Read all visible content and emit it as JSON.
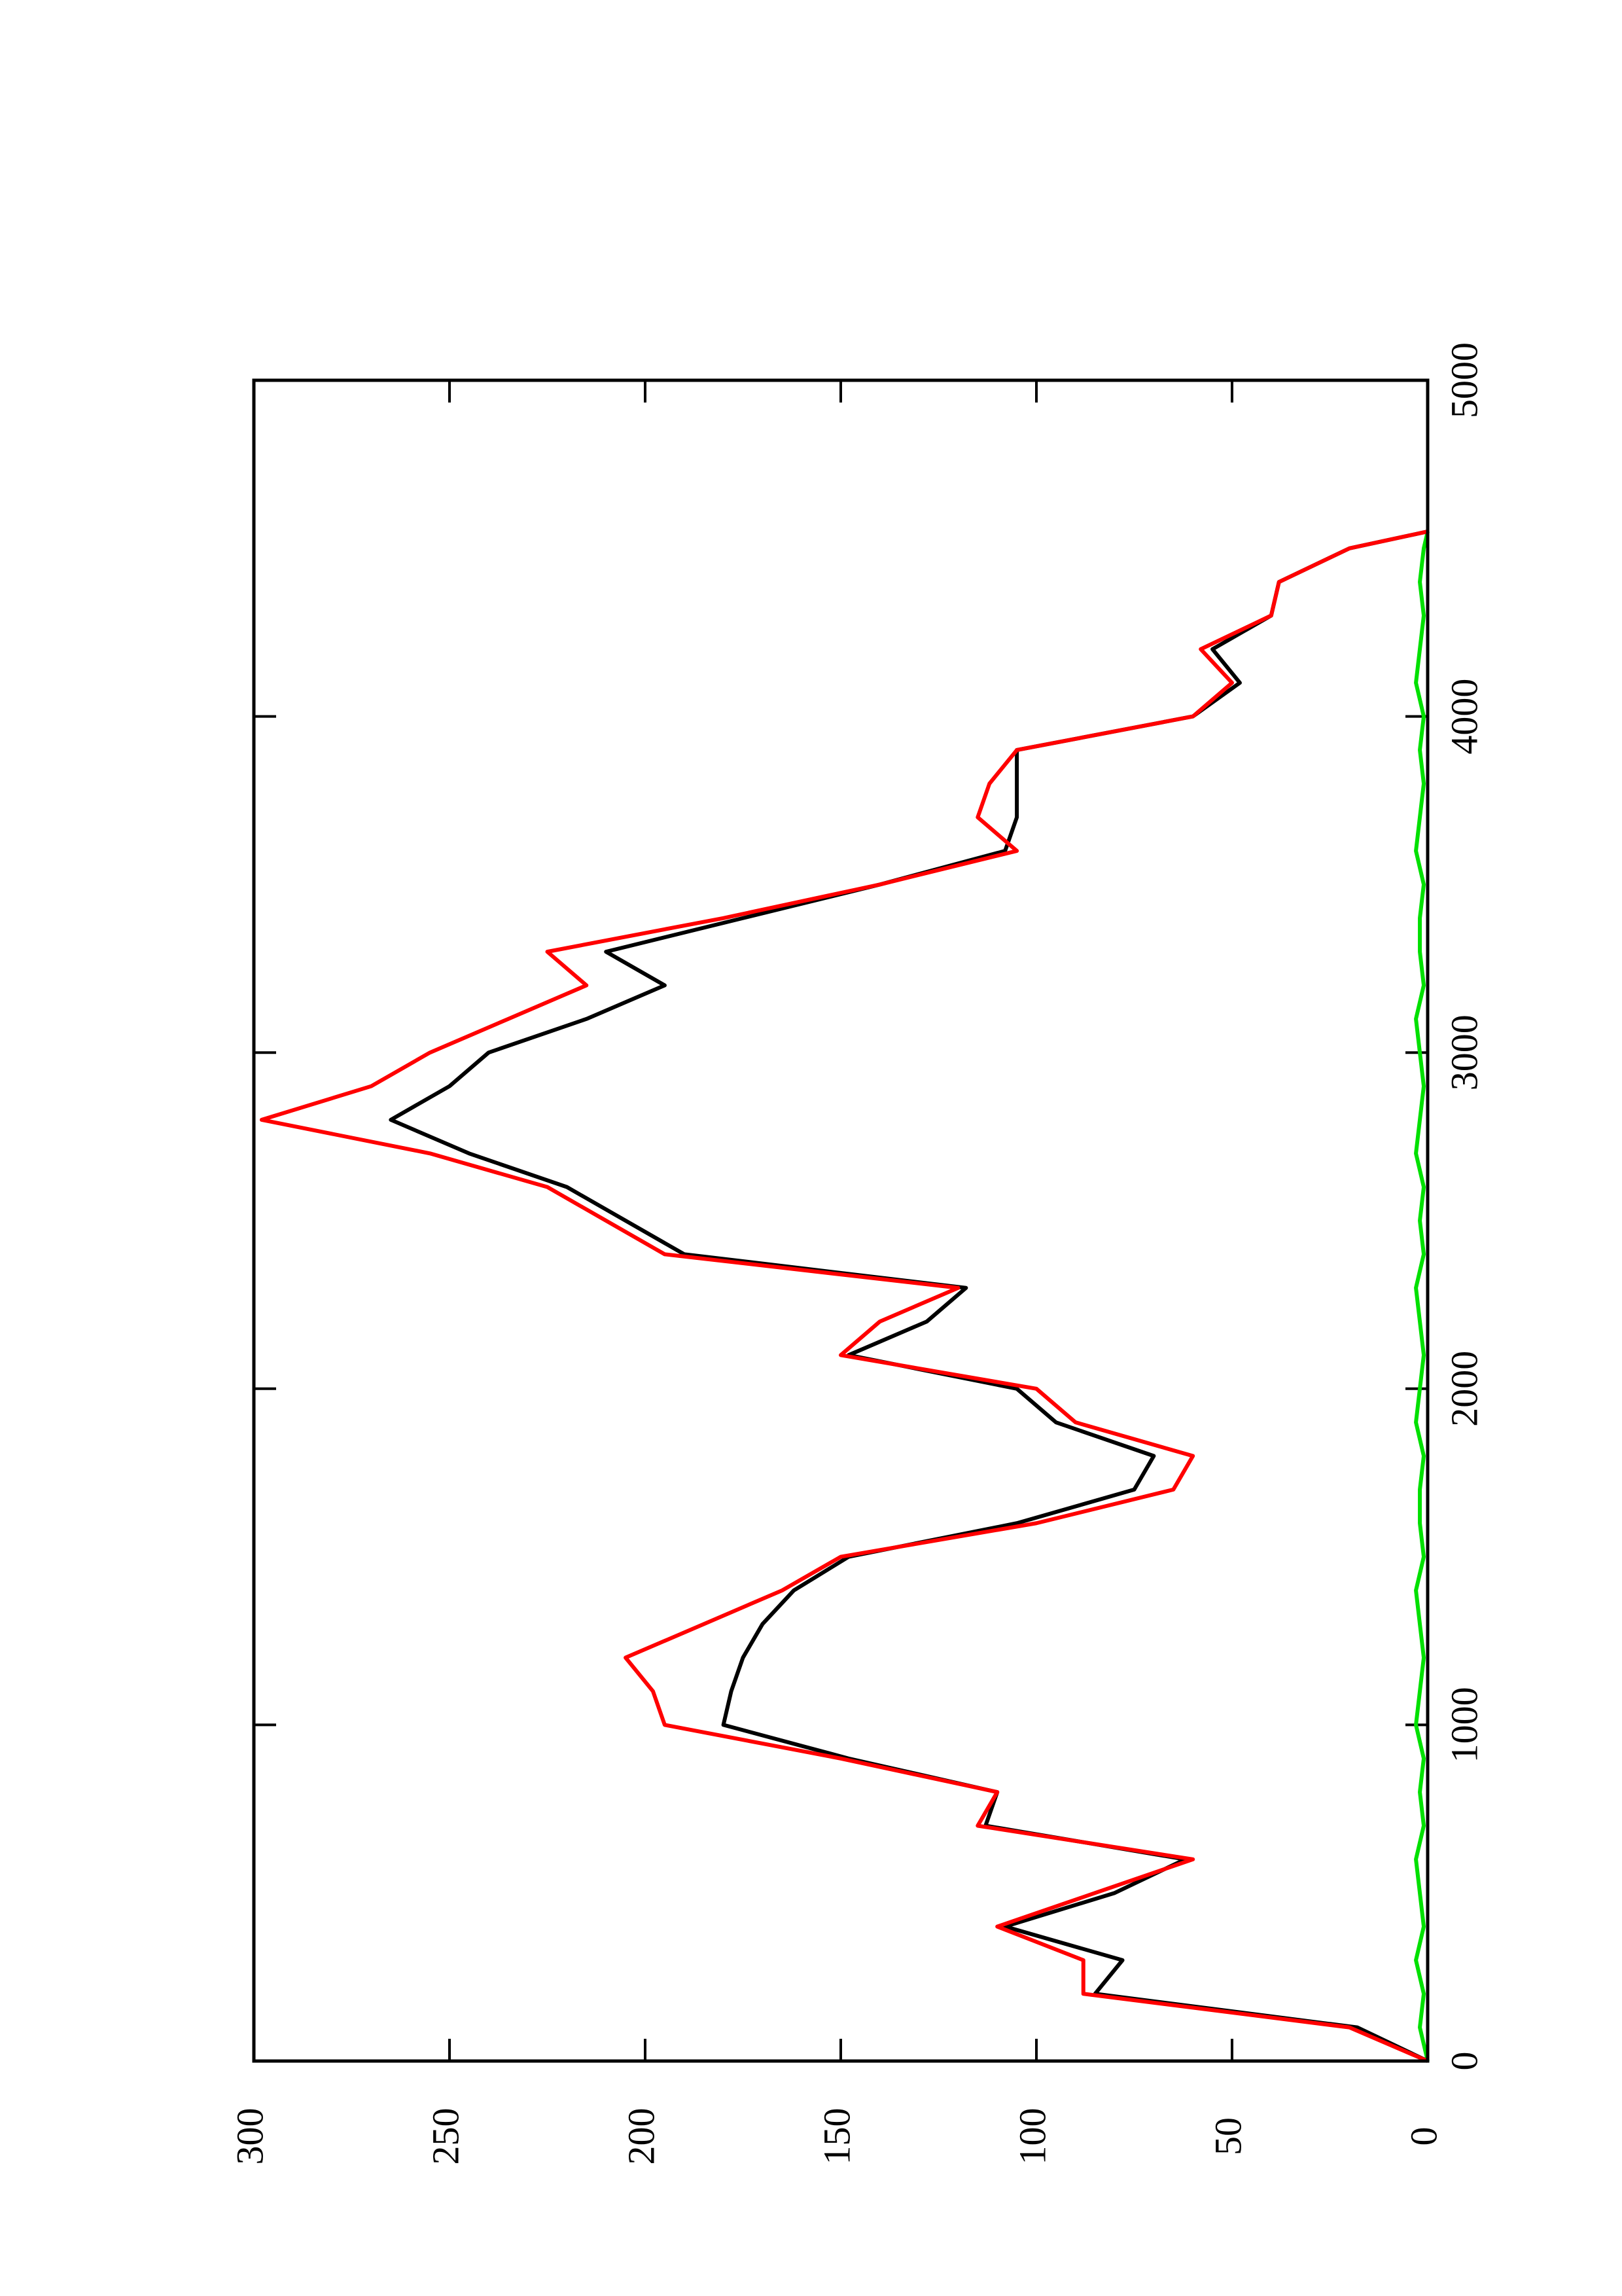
{
  "chart_data": {
    "type": "line",
    "x": [
      0,
      100,
      200,
      300,
      400,
      500,
      600,
      700,
      800,
      900,
      1000,
      1100,
      1200,
      1300,
      1400,
      1500,
      1600,
      1700,
      1800,
      1900,
      2000,
      2100,
      2200,
      2300,
      2400,
      2500,
      2600,
      2700,
      2800,
      2900,
      3000,
      3100,
      3200,
      3300,
      3400,
      3500,
      3600,
      3700,
      3800,
      3900,
      4000,
      4100,
      4200,
      4300,
      4400,
      4500,
      4550
    ],
    "series": [
      {
        "color": "#00e000",
        "values": [
          0,
          2,
          1,
          3,
          1,
          2,
          3,
          1,
          2,
          1,
          3,
          2,
          1,
          2,
          3,
          1,
          2,
          2,
          1,
          3,
          2,
          1,
          2,
          3,
          1,
          2,
          1,
          3,
          2,
          1,
          2,
          3,
          1,
          2,
          2,
          1,
          3,
          2,
          1,
          2,
          1,
          3,
          2,
          1,
          2,
          1,
          0
        ]
      },
      {
        "color": "#000000",
        "values": [
          0,
          18,
          85,
          78,
          108,
          80,
          62,
          113,
          110,
          148,
          180,
          178,
          175,
          170,
          162,
          148,
          105,
          75,
          70,
          95,
          105,
          148,
          128,
          118,
          190,
          205,
          220,
          245,
          265,
          250,
          240,
          215,
          195,
          210,
          175,
          140,
          108,
          105,
          105,
          105,
          60,
          48,
          55,
          40,
          38,
          20,
          0
        ]
      },
      {
        "color": "#ff0000",
        "values": [
          0,
          20,
          88,
          88,
          110,
          85,
          60,
          115,
          110,
          150,
          195,
          198,
          205,
          185,
          165,
          150,
          100,
          65,
          60,
          90,
          100,
          150,
          140,
          120,
          195,
          210,
          225,
          255,
          298,
          270,
          255,
          235,
          215,
          225,
          180,
          140,
          105,
          115,
          112,
          105,
          60,
          50,
          58,
          40,
          38,
          20,
          0
        ]
      }
    ],
    "xlim": [
      0,
      5000
    ],
    "xticks": [
      0,
      1000,
      2000,
      3000,
      4000,
      5000
    ],
    "ylim": [
      0,
      300
    ],
    "yticks": [
      0,
      50,
      100,
      150,
      200,
      250,
      300
    ]
  }
}
